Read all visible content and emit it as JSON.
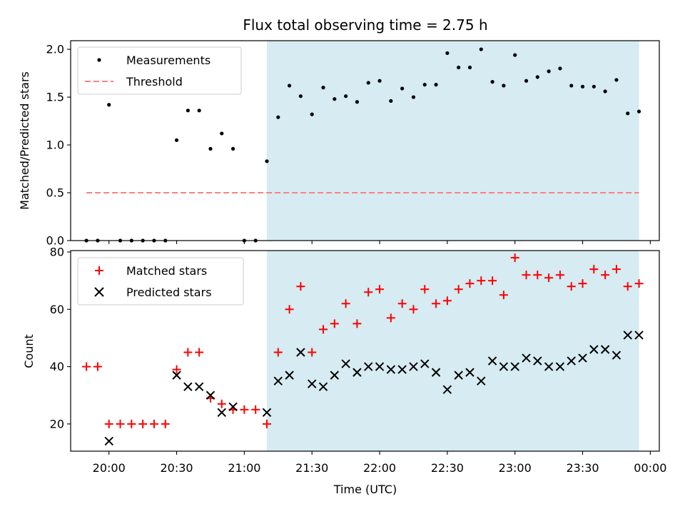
{
  "title": "Flux total observing time = 2.75 h",
  "colors": {
    "measurement": "#000000",
    "threshold": "#ff7f7f",
    "matched": "#ff0000",
    "predicted": "#000000",
    "shade": "#add8e6"
  },
  "chart_data": [
    {
      "type": "scatter",
      "ylabel": "Matched/Predicted stars",
      "xlim": [
        "19:43",
        "24:04"
      ],
      "ylim": [
        0,
        2.09
      ],
      "yticks": [
        0.0,
        0.5,
        1.0,
        1.5,
        2.0
      ],
      "ytick_labels": [
        "0.0",
        "0.5",
        "1.0",
        "1.5",
        "2.0"
      ],
      "shaded_region": [
        "21:10",
        "23:55"
      ],
      "legend_position": "upper left",
      "series": [
        {
          "name": "Measurements",
          "marker": "dot",
          "x": [
            "19:50",
            "19:55",
            "20:00",
            "20:05",
            "20:10",
            "20:15",
            "20:20",
            "20:25",
            "20:30",
            "20:35",
            "20:40",
            "20:45",
            "20:50",
            "20:55",
            "21:00",
            "21:05",
            "21:10",
            "21:15",
            "21:20",
            "21:25",
            "21:30",
            "21:35",
            "21:40",
            "21:45",
            "21:50",
            "21:55",
            "22:00",
            "22:05",
            "22:10",
            "22:15",
            "22:20",
            "22:25",
            "22:30",
            "22:35",
            "22:40",
            "22:45",
            "22:50",
            "22:55",
            "23:00",
            "23:05",
            "23:10",
            "23:15",
            "23:20",
            "23:25",
            "23:30",
            "23:35",
            "23:40",
            "23:45",
            "23:50",
            "23:55"
          ],
          "y": [
            0,
            0,
            1.42,
            0,
            0,
            0,
            0,
            0,
            1.05,
            1.36,
            1.36,
            0.96,
            1.12,
            0.96,
            0,
            0,
            0.83,
            1.29,
            1.62,
            1.51,
            1.32,
            1.6,
            1.48,
            1.51,
            1.45,
            1.65,
            1.67,
            1.46,
            1.59,
            1.5,
            1.63,
            1.63,
            1.96,
            1.81,
            1.81,
            2.0,
            1.66,
            1.62,
            1.94,
            1.67,
            1.71,
            1.77,
            1.8,
            1.62,
            1.61,
            1.61,
            1.56,
            1.68,
            1.33,
            1.35
          ]
        },
        {
          "name": "Threshold",
          "line": "dashed",
          "x": [
            "19:50",
            "23:55"
          ],
          "y": [
            0.5,
            0.5
          ]
        }
      ]
    },
    {
      "type": "scatter",
      "ylabel": "Count",
      "xlabel": "Time (UTC)",
      "xlim": [
        "19:43",
        "24:04"
      ],
      "xticks": [
        "20:00",
        "20:30",
        "21:00",
        "21:30",
        "22:00",
        "22:30",
        "23:00",
        "23:30",
        "24:00"
      ],
      "xtick_labels": [
        "20:00",
        "20:30",
        "21:00",
        "21:30",
        "22:00",
        "22:30",
        "23:00",
        "23:30",
        "00:00"
      ],
      "ylim": [
        10.5,
        80.5
      ],
      "yticks": [
        20,
        40,
        60,
        80
      ],
      "ytick_labels": [
        "20",
        "40",
        "60",
        "80"
      ],
      "shaded_region": [
        "21:10",
        "23:55"
      ],
      "legend_position": "upper left",
      "series": [
        {
          "name": "Matched stars",
          "marker": "plus",
          "x": [
            "19:50",
            "19:55",
            "20:00",
            "20:05",
            "20:10",
            "20:15",
            "20:20",
            "20:25",
            "20:30",
            "20:35",
            "20:40",
            "20:45",
            "20:50",
            "20:55",
            "21:00",
            "21:05",
            "21:10",
            "21:15",
            "21:20",
            "21:25",
            "21:30",
            "21:35",
            "21:40",
            "21:45",
            "21:50",
            "21:55",
            "22:00",
            "22:05",
            "22:10",
            "22:15",
            "22:20",
            "22:25",
            "22:30",
            "22:35",
            "22:40",
            "22:45",
            "22:50",
            "22:55",
            "23:00",
            "23:05",
            "23:10",
            "23:15",
            "23:20",
            "23:25",
            "23:30",
            "23:35",
            "23:40",
            "23:45",
            "23:50",
            "23:55"
          ],
          "y": [
            40,
            40,
            20,
            20,
            20,
            20,
            20,
            20,
            39,
            45,
            45,
            29,
            27,
            25,
            25,
            25,
            20,
            45,
            60,
            68,
            45,
            53,
            55,
            62,
            55,
            66,
            67,
            57,
            62,
            60,
            67,
            62,
            63,
            67,
            69,
            70,
            70,
            65,
            78,
            72,
            72,
            71,
            72,
            68,
            69,
            74,
            72,
            74,
            68,
            69
          ]
        },
        {
          "name": "Predicted stars",
          "marker": "x",
          "x": [
            "20:00",
            "20:30",
            "20:35",
            "20:40",
            "20:45",
            "20:50",
            "20:55",
            "21:10",
            "21:15",
            "21:20",
            "21:25",
            "21:30",
            "21:35",
            "21:40",
            "21:45",
            "21:50",
            "21:55",
            "22:00",
            "22:05",
            "22:10",
            "22:15",
            "22:20",
            "22:25",
            "22:30",
            "22:35",
            "22:40",
            "22:45",
            "22:50",
            "22:55",
            "23:00",
            "23:05",
            "23:10",
            "23:15",
            "23:20",
            "23:25",
            "23:30",
            "23:35",
            "23:40",
            "23:45",
            "23:50",
            "23:55"
          ],
          "y": [
            14,
            37,
            33,
            33,
            30,
            24,
            26,
            24,
            35,
            37,
            45,
            34,
            33,
            37,
            41,
            38,
            40,
            40,
            39,
            39,
            40,
            41,
            38,
            32,
            37,
            38,
            35,
            42,
            40,
            40,
            43,
            42,
            40,
            40,
            42,
            43,
            46,
            46,
            44,
            51,
            51
          ]
        }
      ]
    }
  ]
}
